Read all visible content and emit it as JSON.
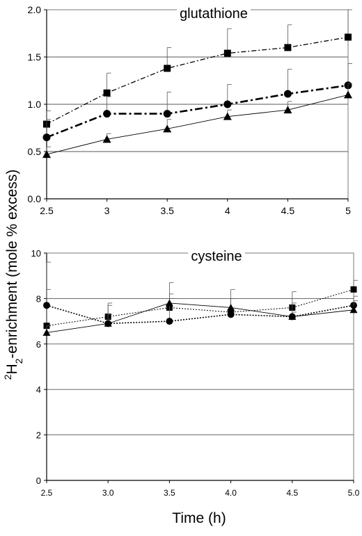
{
  "figure": {
    "ylabel_html": "2H2-enrichment (mole % excess)",
    "xlabel": "Time (h)"
  },
  "chart_data": [
    {
      "type": "line",
      "title": "glutathione",
      "xlabel": "",
      "ylabel": "",
      "x": [
        2.5,
        3,
        3.5,
        4,
        4.5,
        5
      ],
      "x_tick_labels": [
        "2.5",
        "3",
        "3.5",
        "4",
        "4.5",
        "5"
      ],
      "ylim": [
        0,
        2.0
      ],
      "y_ticks": [
        0,
        0.5,
        1.0,
        1.5,
        2.0
      ],
      "y_tick_labels": [
        "0.0",
        "0.5",
        "1.0",
        "1.5",
        "2.0"
      ],
      "grid": true,
      "series": [
        {
          "marker": "square",
          "line_style": "dash-dot",
          "values": [
            0.79,
            1.12,
            1.38,
            1.54,
            1.6,
            1.71
          ],
          "error_upper": [
            0.93,
            1.33,
            1.6,
            1.8,
            1.84,
            2.0
          ]
        },
        {
          "marker": "circle",
          "line_style": "thick-dash-dot",
          "values": [
            0.65,
            0.9,
            0.9,
            1.0,
            1.11,
            1.2
          ],
          "error_upper": [
            0.84,
            1.08,
            1.13,
            1.21,
            1.37,
            1.43
          ]
        },
        {
          "marker": "triangle",
          "line_style": "solid-thin",
          "values": [
            0.47,
            0.63,
            0.74,
            0.87,
            0.94,
            1.1
          ],
          "error_upper": [
            0.55,
            0.69,
            0.84,
            0.94,
            1.03,
            1.22
          ]
        }
      ]
    },
    {
      "type": "line",
      "title": "cysteine",
      "xlabel": "",
      "ylabel": "",
      "x": [
        2.5,
        3.0,
        3.5,
        4.0,
        4.5,
        5.0
      ],
      "x_tick_labels": [
        "2.5",
        "3.0",
        "3.5",
        "4.0",
        "4.5",
        "5.0"
      ],
      "ylim": [
        0,
        10
      ],
      "y_ticks": [
        0,
        2,
        4,
        6,
        8,
        10
      ],
      "y_tick_labels": [
        "0",
        "2",
        "4",
        "6",
        "8",
        "10"
      ],
      "grid": true,
      "series": [
        {
          "marker": "square",
          "line_style": "dotted",
          "values": [
            6.8,
            7.2,
            7.6,
            7.4,
            7.6,
            8.4
          ],
          "error_upper": [
            9.6,
            7.8,
            8.7,
            8.4,
            8.3,
            8.8
          ]
        },
        {
          "marker": "circle",
          "line_style": "dotted-heavy",
          "values": [
            7.7,
            6.9,
            7.0,
            7.3,
            7.2,
            7.7
          ],
          "error_upper": [
            8.4,
            7.7,
            8.0,
            8.0,
            7.8,
            8.1
          ]
        },
        {
          "marker": "triangle",
          "line_style": "solid-thin",
          "values": [
            6.5,
            6.9,
            7.8,
            7.6,
            7.2,
            7.5
          ],
          "error_upper": [
            6.8,
            7.3,
            8.2,
            8.0,
            7.4,
            7.9
          ]
        }
      ]
    }
  ]
}
